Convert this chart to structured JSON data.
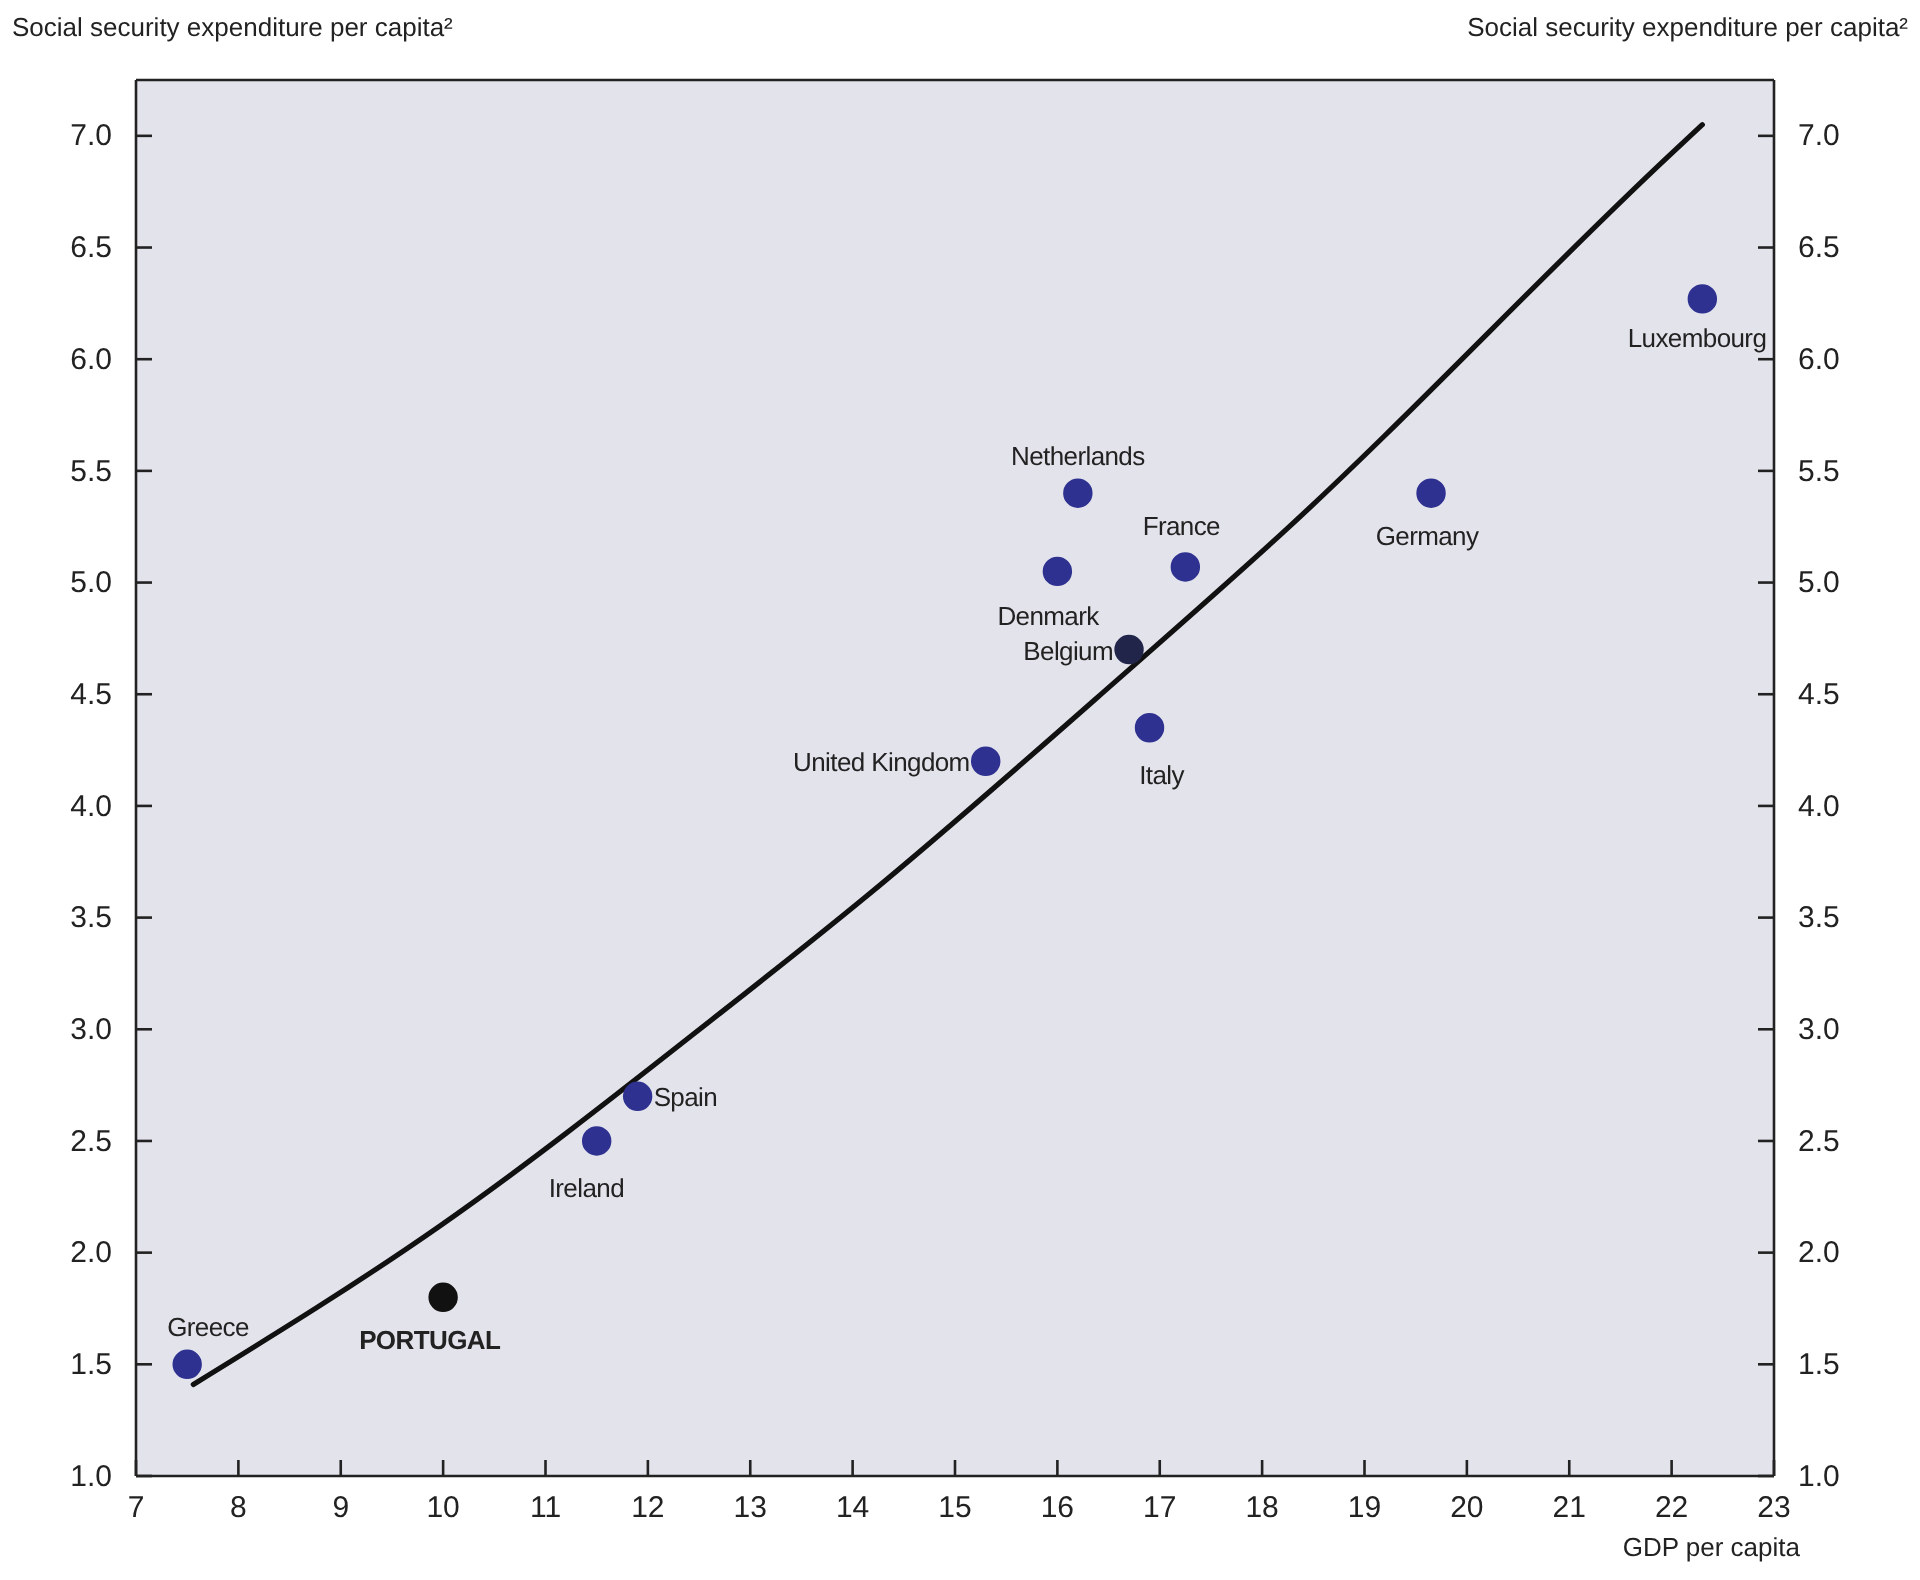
{
  "chart_data": {
    "type": "scatter",
    "xlabel": "GDP per capita",
    "ylabel": "Social security expenditure per capita²",
    "y2label": "Social security expenditure per capita²",
    "xlim": [
      7,
      23.0
    ],
    "xticks": [
      7,
      8,
      9,
      10,
      11,
      12,
      13,
      14,
      15,
      16,
      17,
      18,
      19,
      20,
      21,
      22,
      23
    ],
    "ylim": [
      1.0,
      7.25
    ],
    "yticks": [
      {
        "value": 1,
        "label": "1.0"
      },
      {
        "value": 1.5,
        "label": "1.5"
      },
      {
        "value": 2,
        "label": "2.0"
      },
      {
        "value": 2.5,
        "label": "2.5"
      },
      {
        "value": 3,
        "label": "3.0"
      },
      {
        "value": 3.5,
        "label": "3.5"
      },
      {
        "value": 4,
        "label": "4.0"
      },
      {
        "value": 4.5,
        "label": "4.5"
      },
      {
        "value": 5,
        "label": "5.0"
      },
      {
        "value": 5.5,
        "label": "5.5"
      },
      {
        "value": 6,
        "label": "6.0"
      },
      {
        "value": 6.5,
        "label": "6.5"
      },
      {
        "value": 7,
        "label": "7.0"
      }
    ],
    "y2lim": [
      1.0,
      7.25
    ],
    "y2ticks": [
      {
        "value": 1,
        "label": "1.0"
      },
      {
        "value": 1.5,
        "label": "1.5"
      },
      {
        "value": 2,
        "label": "2.0"
      },
      {
        "value": 2.5,
        "label": "2.5"
      },
      {
        "value": 3,
        "label": "3.0"
      },
      {
        "value": 3.5,
        "label": "3.5"
      },
      {
        "value": 4,
        "label": "4.0"
      },
      {
        "value": 4.5,
        "label": "4.5"
      },
      {
        "value": 5,
        "label": "5.0"
      },
      {
        "value": 5.5,
        "label": "5.5"
      },
      {
        "value": 6,
        "label": "6.0"
      },
      {
        "value": 6.5,
        "label": "6.5"
      },
      {
        "value": 7,
        "label": "7.0"
      }
    ],
    "grid": false,
    "marker": "circle",
    "series": [
      {
        "x": [
          7.5,
          10.0,
          11.5,
          11.9,
          16.2,
          16.0,
          17.25,
          16.7,
          16.9,
          15.3,
          19.65,
          22.3
        ],
        "values": [
          1.5,
          1.8,
          2.5,
          2.7,
          5.4,
          5.05,
          5.07,
          4.7,
          4.35,
          4.2,
          5.4,
          6.27
        ],
        "colors": [
          "#2e3190",
          "#111111",
          "#2e3190",
          "#2e3190",
          "#2e3190",
          "#2e3190",
          "#2e3190",
          "#22254a",
          "#2e3190",
          "#2e3190",
          "#2e3190",
          "#2e3190"
        ]
      },
      {
        "type": "line",
        "color": "#111111",
        "line_style": "solid",
        "marker": "none",
        "x": [
          7.56,
          9.97,
          12.7,
          14.12,
          16.6,
          18.17,
          21.95,
          22.3
        ],
        "values": [
          1.41,
          2.12,
          3.07,
          3.59,
          4.57,
          5.21,
          6.9,
          7.05
        ]
      }
    ],
    "annotations": [
      {
        "text": "Greece",
        "x": 7.5,
        "y": 1.5
      },
      {
        "text": "PORTUGAL",
        "x": 10.0,
        "y": 1.8
      },
      {
        "text": "Ireland",
        "x": 11.5,
        "y": 2.5
      },
      {
        "text": "Spain",
        "x": 11.9,
        "y": 2.7
      },
      {
        "text": "Netherlands",
        "x": 16.2,
        "y": 5.4
      },
      {
        "text": "Denmark",
        "x": 16.0,
        "y": 5.05
      },
      {
        "text": "France",
        "x": 17.25,
        "y": 5.07
      },
      {
        "text": "Belgium",
        "x": 16.7,
        "y": 4.7
      },
      {
        "text": "Italy",
        "x": 16.9,
        "y": 4.35
      },
      {
        "text": "United Kingdom",
        "x": 15.3,
        "y": 4.2
      },
      {
        "text": "Germany",
        "x": 19.65,
        "y": 5.4
      },
      {
        "text": "Luxembourg",
        "x": 22.3,
        "y": 6.27
      }
    ]
  }
}
